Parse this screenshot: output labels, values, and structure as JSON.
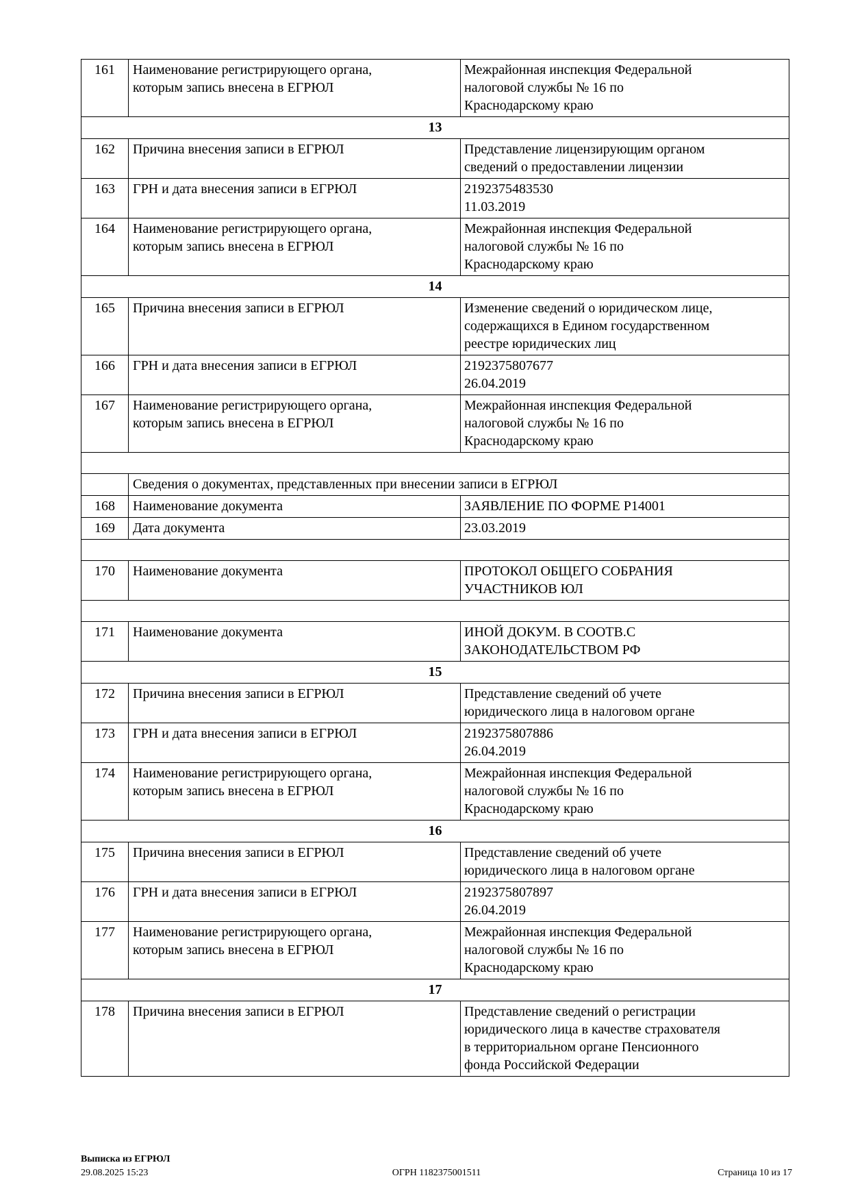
{
  "colors": {
    "background": "#ffffff",
    "text": "#000000",
    "border": "#000000"
  },
  "table": {
    "rows": [
      {
        "type": "field",
        "num": "161",
        "name": "Наименование регистрирующего органа,\nкоторым запись внесена в ЕГРЮЛ",
        "value": "Межрайонная инспекция Федеральной\nналоговой службы № 16 по\nКраснодарскому краю"
      },
      {
        "type": "section",
        "label": "13"
      },
      {
        "type": "field",
        "num": "162",
        "name": "Причина внесения записи в ЕГРЮЛ",
        "value": "Представление лицензирующим органом\nсведений о предоставлении лицензии"
      },
      {
        "type": "field",
        "num": "163",
        "name": "ГРН и дата внесения записи в ЕГРЮЛ",
        "value": "2192375483530\n11.03.2019"
      },
      {
        "type": "field",
        "num": "164",
        "name": "Наименование регистрирующего органа,\nкоторым запись внесена в ЕГРЮЛ",
        "value": "Межрайонная инспекция Федеральной\nналоговой службы № 16 по\nКраснодарскому краю"
      },
      {
        "type": "section",
        "label": "14"
      },
      {
        "type": "field",
        "num": "165",
        "name": "Причина внесения записи в ЕГРЮЛ",
        "value": "Изменение сведений о юридическом лице,\nсодержащихся в Едином государственном\nреестре юридических лиц"
      },
      {
        "type": "field",
        "num": "166",
        "name": "ГРН и дата внесения записи в ЕГРЮЛ",
        "value": "2192375807677\n26.04.2019"
      },
      {
        "type": "field",
        "num": "167",
        "name": "Наименование регистрирующего органа,\nкоторым запись внесена в ЕГРЮЛ",
        "value": "Межрайонная инспекция Федеральной\nналоговой службы № 16 по\nКраснодарскому краю"
      },
      {
        "type": "spacer"
      },
      {
        "type": "subheader",
        "label": "Сведения о документах, представленных при внесении записи в ЕГРЮЛ"
      },
      {
        "type": "field",
        "num": "168",
        "name": "Наименование документа",
        "value": "ЗАЯВЛЕНИЕ ПО ФОРМЕ Р14001"
      },
      {
        "type": "field",
        "num": "169",
        "name": "Дата документа",
        "value": "23.03.2019"
      },
      {
        "type": "spacer"
      },
      {
        "type": "field",
        "num": "170",
        "name": "Наименование документа",
        "value": "ПРОТОКОЛ ОБЩЕГО СОБРАНИЯ\nУЧАСТНИКОВ ЮЛ"
      },
      {
        "type": "spacer"
      },
      {
        "type": "field",
        "num": "171",
        "name": "Наименование документа",
        "value": "ИНОЙ ДОКУМ. В СООТВ.С\nЗАКОНОДАТЕЛЬСТВОМ РФ"
      },
      {
        "type": "section",
        "label": "15"
      },
      {
        "type": "field",
        "num": "172",
        "name": "Причина внесения записи в ЕГРЮЛ",
        "value": "Представление сведений об учете\nюридического лица в налоговом органе"
      },
      {
        "type": "field",
        "num": "173",
        "name": "ГРН и дата внесения записи в ЕГРЮЛ",
        "value": "2192375807886\n26.04.2019"
      },
      {
        "type": "field",
        "num": "174",
        "name": "Наименование регистрирующего органа,\nкоторым запись внесена в ЕГРЮЛ",
        "value": "Межрайонная инспекция Федеральной\nналоговой службы № 16 по\nКраснодарскому краю"
      },
      {
        "type": "section",
        "label": "16"
      },
      {
        "type": "field",
        "num": "175",
        "name": "Причина внесения записи в ЕГРЮЛ",
        "value": "Представление сведений об учете\nюридического лица в налоговом органе"
      },
      {
        "type": "field",
        "num": "176",
        "name": "ГРН и дата внесения записи в ЕГРЮЛ",
        "value": "2192375807897\n26.04.2019"
      },
      {
        "type": "field",
        "num": "177",
        "name": "Наименование регистрирующего органа,\nкоторым запись внесена в ЕГРЮЛ",
        "value": "Межрайонная инспекция Федеральной\nналоговой службы № 16 по\nКраснодарскому краю"
      },
      {
        "type": "section",
        "label": "17"
      },
      {
        "type": "field",
        "num": "178",
        "name": "Причина внесения записи в ЕГРЮЛ",
        "value": "Представление сведений о регистрации\nюридического лица в качестве страхователя\nв территориальном органе Пенсионного\nфонда Российской Федерации"
      }
    ]
  },
  "footer": {
    "doc_title": "Выписка из ЕГРЮЛ",
    "datetime": "29.08.2025 15:23",
    "ogrn": "ОГРН 1182375001511",
    "page_info": "Страница 10 из 17"
  }
}
